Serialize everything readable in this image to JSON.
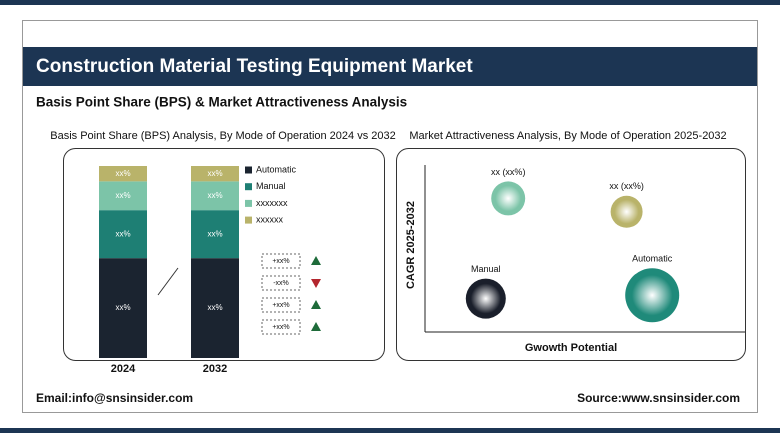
{
  "header": {
    "title": "Construction Material Testing Equipment Market",
    "subtitle": "Basis Point Share (BPS) & Market Attractiveness Analysis"
  },
  "chart_data": [
    {
      "type": "stacked_bar",
      "title": "Basis Point Share (BPS) Analysis, By Mode of Operation 2024 vs 2032",
      "categories": [
        "2024",
        "2032"
      ],
      "series": [
        {
          "name": "Automatic",
          "color": "#1b2430",
          "values": [
            52,
            52
          ],
          "value_labels": [
            "xx%",
            "xx%"
          ]
        },
        {
          "name": "Manual",
          "color": "#1e7f74",
          "values": [
            25,
            25
          ],
          "value_labels": [
            "xx%",
            "xx%"
          ]
        },
        {
          "name": "xxxxxxx",
          "color": "#7cc4a8",
          "values": [
            15,
            15
          ],
          "value_labels": [
            "xx%",
            "xx%"
          ]
        },
        {
          "name": "xxxxxx",
          "color": "#b9b36a",
          "values": [
            8,
            8
          ],
          "value_labels": [
            "xx%",
            "xx%"
          ]
        }
      ],
      "ylim": [
        0,
        100
      ],
      "changes": [
        {
          "label": "+xx%",
          "direction": "up",
          "color": "#1e6b3a"
        },
        {
          "label": "-xx%",
          "direction": "down",
          "color": "#b3262e"
        },
        {
          "label": "+xx%",
          "direction": "up",
          "color": "#1e6b3a"
        },
        {
          "label": "+xx%",
          "direction": "up",
          "color": "#1e6b3a"
        }
      ]
    },
    {
      "type": "bubble",
      "title": "Market Attractiveness Analysis, By Mode of Operation 2025-2032",
      "x_label": "Gwowth Potential",
      "y_label": "CAGR 2025-2032",
      "xlim": [
        0,
        100
      ],
      "ylim": [
        0,
        100
      ],
      "points": [
        {
          "label": "xx (xx%)",
          "x": 26,
          "y": 80,
          "size": 17,
          "color": "#7cc4a8"
        },
        {
          "label": "xx (xx%)",
          "x": 63,
          "y": 72,
          "size": 16,
          "color": "#b9b36a"
        },
        {
          "label": "Manual",
          "x": 19,
          "y": 20,
          "size": 20,
          "color": "#1a1f2b"
        },
        {
          "label": "Automatic",
          "x": 71,
          "y": 22,
          "size": 27,
          "color": "#1f8a7a"
        }
      ]
    }
  ],
  "footer": {
    "email": "Email:info@snsinsider.com",
    "source": "Source:www.snsinsider.com"
  }
}
